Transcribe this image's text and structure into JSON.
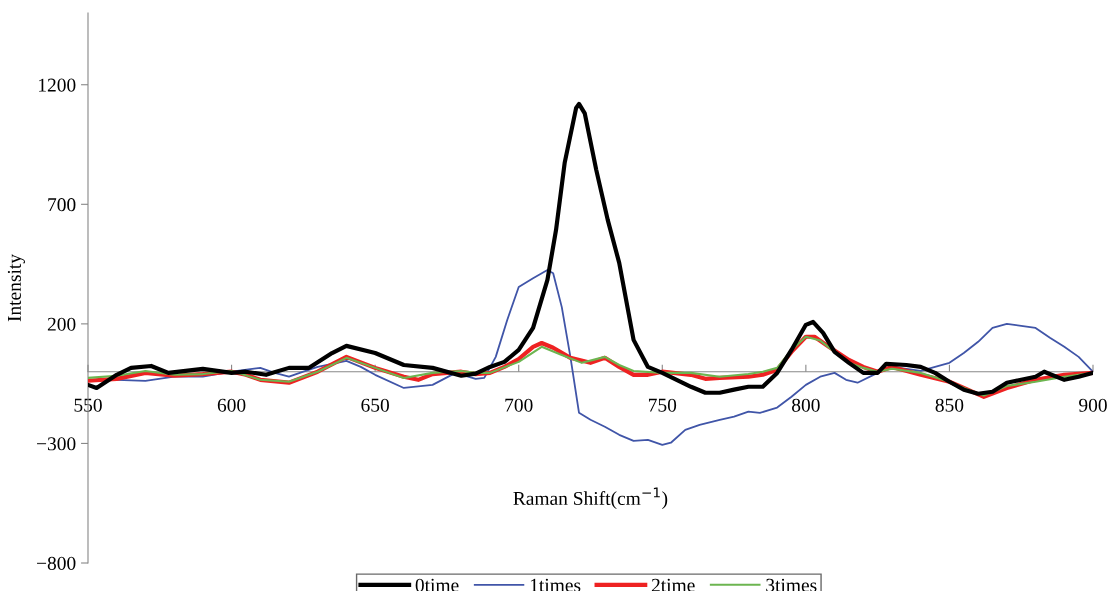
{
  "chart_data": {
    "type": "line",
    "xlabel": "Raman Shift(cm$^{−1}$)",
    "ylabel": "Intensity",
    "xlim": [
      550,
      900
    ],
    "xticks": [
      550,
      600,
      650,
      700,
      750,
      800,
      850,
      900
    ],
    "ylim": [
      -800,
      1500
    ],
    "yticks": [
      1200,
      700,
      200,
      {
        "value": -300,
        "label": "−300"
      },
      {
        "value": -800,
        "label": "−800"
      }
    ],
    "grid": false,
    "legend": "bottom",
    "marker": "none",
    "line_style": "solid",
    "series": [
      {
        "name": "0time",
        "color": "#000000",
        "x": [
          550,
          553,
          560,
          565,
          572,
          578,
          590,
          600,
          605,
          612,
          620,
          627,
          635,
          640,
          650,
          660,
          670,
          680,
          685,
          690,
          695,
          700,
          705,
          710,
          713,
          716,
          720,
          721,
          723,
          727,
          731,
          735,
          740,
          745,
          750,
          755,
          760,
          765,
          770,
          775,
          780,
          785,
          790,
          795,
          800,
          802.5,
          806,
          810,
          815,
          820,
          825,
          828,
          835,
          840,
          845,
          850,
          855,
          860,
          865,
          870,
          875,
          880,
          883,
          890,
          895,
          900
        ],
        "values": [
          -55,
          -68,
          -13,
          16,
          24,
          -5,
          12,
          -5,
          0,
          -13,
          16,
          16,
          78,
          108,
          78,
          28,
          16,
          -17,
          -8,
          20,
          41,
          91,
          183,
          384,
          593,
          873,
          1103,
          1120,
          1080,
          844,
          635,
          455,
          133,
          20,
          -5,
          -34,
          -63,
          -88,
          -88,
          -75,
          -63,
          -63,
          -5,
          91,
          196,
          208,
          162,
          83,
          37,
          -5,
          -5,
          33,
          28,
          20,
          -5,
          -42,
          -75,
          -92,
          -84,
          -46,
          -34,
          -21,
          0,
          -34,
          -21,
          -5
        ]
      },
      {
        "name": "1times",
        "color": "#4055a8",
        "x": [
          550,
          560,
          570,
          580,
          590,
          600,
          610,
          615,
          620,
          625,
          630,
          640,
          645,
          650,
          660,
          670,
          678,
          685,
          688,
          692,
          696,
          700,
          705,
          710,
          712,
          715,
          718,
          721,
          725,
          730,
          735,
          740,
          745,
          750,
          753,
          758,
          763,
          770,
          775,
          780,
          784,
          790,
          795,
          800,
          805,
          810,
          814,
          818,
          825,
          830,
          840,
          850,
          855,
          860,
          865,
          870,
          875,
          880,
          885,
          890,
          895,
          900
        ],
        "values": [
          -34,
          -34,
          -38,
          -21,
          -21,
          0,
          16,
          -5,
          -21,
          0,
          20,
          45,
          20,
          -13,
          -68,
          -55,
          -5,
          -30,
          -26,
          62,
          216,
          354,
          391,
          425,
          412,
          270,
          62,
          -172,
          -201,
          -230,
          -264,
          -289,
          -285,
          -306,
          -297,
          -243,
          -222,
          -201,
          -188,
          -167,
          -172,
          -150,
          -105,
          -55,
          -21,
          -5,
          -34,
          -46,
          -5,
          20,
          3,
          37,
          78,
          125,
          183,
          200,
          192,
          183,
          142,
          104,
          62,
          0
        ]
      },
      {
        "name": "2time",
        "color": "#ee2222",
        "x": [
          550,
          560,
          570,
          580,
          590,
          600,
          605,
          610,
          620,
          630,
          640,
          650,
          660,
          665,
          670,
          680,
          685,
          690,
          695,
          700,
          705,
          708,
          712,
          718,
          725,
          730,
          735,
          740,
          745,
          750,
          760,
          765,
          770,
          780,
          785,
          790,
          795,
          800,
          803,
          808,
          815,
          820,
          825,
          830,
          840,
          850,
          855,
          862,
          870,
          880,
          890,
          900
        ],
        "values": [
          -38,
          -30,
          -5,
          -17,
          -10,
          0,
          -13,
          -34,
          -46,
          0,
          62,
          16,
          -21,
          -34,
          -10,
          0,
          -10,
          -5,
          20,
          53,
          104,
          120,
          100,
          58,
          37,
          58,
          20,
          -13,
          -13,
          0,
          -13,
          -30,
          -26,
          -21,
          -13,
          8,
          83,
          146,
          146,
          104,
          49,
          20,
          0,
          20,
          -13,
          -42,
          -68,
          -105,
          -68,
          -34,
          -13,
          -5
        ]
      },
      {
        "name": "3times",
        "color": "#6cb550",
        "x": [
          550,
          560,
          570,
          580,
          590,
          600,
          610,
          620,
          630,
          640,
          650,
          660,
          670,
          680,
          685,
          690,
          700,
          708,
          715,
          722,
          730,
          735,
          740,
          750,
          760,
          770,
          780,
          785,
          790,
          795,
          800,
          805,
          810,
          815,
          820,
          825,
          830,
          840,
          850,
          855,
          862,
          870,
          880,
          890,
          900
        ],
        "values": [
          -26,
          -17,
          3,
          -13,
          -10,
          3,
          -34,
          -42,
          0,
          58,
          16,
          -26,
          -5,
          3,
          -5,
          -5,
          41,
          104,
          70,
          37,
          62,
          28,
          3,
          -5,
          -5,
          -21,
          -10,
          0,
          16,
          91,
          146,
          130,
          83,
          37,
          16,
          0,
          12,
          -5,
          -42,
          -68,
          -100,
          -60,
          -42,
          -21,
          -5
        ]
      }
    ]
  }
}
